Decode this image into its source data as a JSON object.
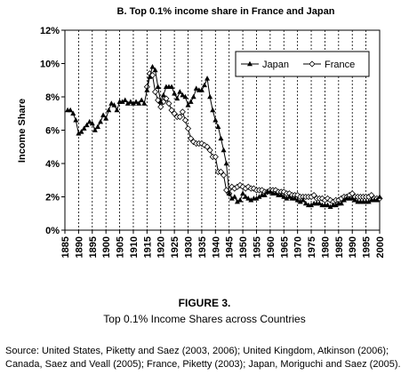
{
  "figure": {
    "label": "FIGURE 3.",
    "caption": "Top 0.1% Income Shares across Countries",
    "source": "Source: United States, Piketty and Saez (2003, 2006); United Kingdom, Atkinson (2006); Canada, Saez and Veall (2005); France, Piketty (2003); Japan, Moriguchi and Saez (2005)."
  },
  "chart_data": {
    "type": "line",
    "title": "B. Top 0.1% income share in France and Japan",
    "xlabel": "",
    "ylabel": "Income Share",
    "xlim": [
      1885,
      2000
    ],
    "ylim": [
      0,
      12
    ],
    "xticks": [
      "1885",
      "1890",
      "1895",
      "1900",
      "1905",
      "1910",
      "1915",
      "1920",
      "1925",
      "1930",
      "1935",
      "1940",
      "1945",
      "1950",
      "1955",
      "1960",
      "1965",
      "1970",
      "1975",
      "1980",
      "1985",
      "1990",
      "1995",
      "2000"
    ],
    "yticks": [
      "0%",
      "2%",
      "4%",
      "6%",
      "8%",
      "10%",
      "12%"
    ],
    "grid": "vertical dashed",
    "legend_position": "top-right",
    "series": [
      {
        "name": "Japan",
        "marker": "filled-triangle",
        "points": [
          [
            1886,
            7.2
          ],
          [
            1887,
            7.2
          ],
          [
            1888,
            7.0
          ],
          [
            1889,
            6.6
          ],
          [
            1890,
            5.8
          ],
          [
            1891,
            5.9
          ],
          [
            1892,
            6.1
          ],
          [
            1893,
            6.3
          ],
          [
            1894,
            6.5
          ],
          [
            1895,
            6.4
          ],
          [
            1896,
            6.0
          ],
          [
            1897,
            6.2
          ],
          [
            1898,
            6.5
          ],
          [
            1899,
            6.9
          ],
          [
            1900,
            6.7
          ],
          [
            1901,
            7.2
          ],
          [
            1902,
            7.6
          ],
          [
            1903,
            7.5
          ],
          [
            1904,
            7.2
          ],
          [
            1905,
            7.7
          ],
          [
            1906,
            7.7
          ],
          [
            1907,
            7.8
          ],
          [
            1908,
            7.6
          ],
          [
            1909,
            7.7
          ],
          [
            1910,
            7.6
          ],
          [
            1911,
            7.7
          ],
          [
            1912,
            7.6
          ],
          [
            1913,
            7.8
          ],
          [
            1914,
            7.6
          ],
          [
            1915,
            8.4
          ],
          [
            1916,
            9.2
          ],
          [
            1917,
            9.8
          ],
          [
            1918,
            9.6
          ],
          [
            1919,
            8.6
          ],
          [
            1920,
            7.7
          ],
          [
            1921,
            8.1
          ],
          [
            1922,
            8.6
          ],
          [
            1923,
            8.6
          ],
          [
            1924,
            8.6
          ],
          [
            1925,
            8.2
          ],
          [
            1926,
            7.9
          ],
          [
            1927,
            8.3
          ],
          [
            1928,
            8.1
          ],
          [
            1929,
            8.0
          ],
          [
            1930,
            7.5
          ],
          [
            1931,
            7.7
          ],
          [
            1932,
            8.0
          ],
          [
            1933,
            8.5
          ],
          [
            1934,
            8.4
          ],
          [
            1935,
            8.4
          ],
          [
            1936,
            8.7
          ],
          [
            1937,
            9.1
          ],
          [
            1938,
            8.0
          ],
          [
            1939,
            7.2
          ],
          [
            1940,
            6.6
          ],
          [
            1941,
            6.2
          ],
          [
            1942,
            5.5
          ],
          [
            1943,
            4.8
          ],
          [
            1944,
            4.0
          ],
          [
            1945,
            2.2
          ],
          [
            1946,
            1.9
          ],
          [
            1947,
            2.0
          ],
          [
            1948,
            1.7
          ],
          [
            1949,
            1.8
          ],
          [
            1950,
            2.2
          ],
          [
            1951,
            2.0
          ],
          [
            1952,
            1.9
          ],
          [
            1953,
            1.8
          ],
          [
            1954,
            1.9
          ],
          [
            1955,
            1.9
          ],
          [
            1956,
            2.0
          ],
          [
            1957,
            2.1
          ],
          [
            1958,
            2.1
          ],
          [
            1959,
            2.3
          ],
          [
            1960,
            2.3
          ],
          [
            1961,
            2.2
          ],
          [
            1962,
            2.2
          ],
          [
            1963,
            2.1
          ],
          [
            1964,
            2.1
          ],
          [
            1965,
            2.0
          ],
          [
            1966,
            1.9
          ],
          [
            1967,
            2.0
          ],
          [
            1968,
            1.9
          ],
          [
            1969,
            1.9
          ],
          [
            1970,
            1.8
          ],
          [
            1971,
            1.7
          ],
          [
            1972,
            1.8
          ],
          [
            1973,
            1.6
          ],
          [
            1974,
            1.5
          ],
          [
            1975,
            1.5
          ],
          [
            1976,
            1.6
          ],
          [
            1977,
            1.6
          ],
          [
            1978,
            1.6
          ],
          [
            1979,
            1.5
          ],
          [
            1980,
            1.5
          ],
          [
            1981,
            1.5
          ],
          [
            1982,
            1.4
          ],
          [
            1983,
            1.5
          ],
          [
            1984,
            1.5
          ],
          [
            1985,
            1.6
          ],
          [
            1986,
            1.6
          ],
          [
            1987,
            1.8
          ],
          [
            1988,
            1.9
          ],
          [
            1989,
            1.9
          ],
          [
            1990,
            1.9
          ],
          [
            1991,
            1.8
          ],
          [
            1992,
            1.7
          ],
          [
            1993,
            1.7
          ],
          [
            1994,
            1.7
          ],
          [
            1995,
            1.7
          ],
          [
            1996,
            1.7
          ],
          [
            1997,
            1.8
          ],
          [
            1998,
            1.8
          ],
          [
            1999,
            1.8
          ],
          [
            2000,
            2.0
          ]
        ]
      },
      {
        "name": "France",
        "marker": "open-diamond",
        "points": [
          [
            1915,
            8.6
          ],
          [
            1916,
            9.4
          ],
          [
            1917,
            9.3
          ],
          [
            1918,
            8.3
          ],
          [
            1919,
            7.8
          ],
          [
            1920,
            7.4
          ],
          [
            1921,
            7.7
          ],
          [
            1922,
            7.9
          ],
          [
            1923,
            7.6
          ],
          [
            1924,
            7.2
          ],
          [
            1925,
            7.0
          ],
          [
            1926,
            6.8
          ],
          [
            1927,
            6.8
          ],
          [
            1928,
            7.1
          ],
          [
            1929,
            6.6
          ],
          [
            1930,
            6.1
          ],
          [
            1931,
            5.5
          ],
          [
            1932,
            5.3
          ],
          [
            1933,
            5.2
          ],
          [
            1934,
            5.2
          ],
          [
            1935,
            5.2
          ],
          [
            1936,
            5.1
          ],
          [
            1937,
            5.0
          ],
          [
            1938,
            4.8
          ],
          [
            1939,
            4.4
          ],
          [
            1940,
            4.4
          ],
          [
            1941,
            3.5
          ],
          [
            1942,
            3.5
          ],
          [
            1943,
            3.3
          ],
          [
            1944,
            2.4
          ],
          [
            1945,
            2.2
          ],
          [
            1946,
            2.6
          ],
          [
            1947,
            2.5
          ],
          [
            1948,
            2.6
          ],
          [
            1949,
            2.7
          ],
          [
            1950,
            2.6
          ],
          [
            1951,
            2.5
          ],
          [
            1952,
            2.6
          ],
          [
            1953,
            2.5
          ],
          [
            1954,
            2.5
          ],
          [
            1955,
            2.4
          ],
          [
            1956,
            2.4
          ],
          [
            1957,
            2.4
          ],
          [
            1958,
            2.3
          ],
          [
            1959,
            2.3
          ],
          [
            1960,
            2.4
          ],
          [
            1961,
            2.4
          ],
          [
            1962,
            2.4
          ],
          [
            1963,
            2.3
          ],
          [
            1964,
            2.3
          ],
          [
            1965,
            2.3
          ],
          [
            1966,
            2.2
          ],
          [
            1967,
            2.2
          ],
          [
            1968,
            2.1
          ],
          [
            1969,
            2.1
          ],
          [
            1970,
            2.1
          ],
          [
            1971,
            2.0
          ],
          [
            1972,
            2.0
          ],
          [
            1973,
            2.0
          ],
          [
            1974,
            2.0
          ],
          [
            1975,
            2.0
          ],
          [
            1976,
            2.1
          ],
          [
            1977,
            1.9
          ],
          [
            1978,
            1.9
          ],
          [
            1979,
            1.9
          ],
          [
            1980,
            1.8
          ],
          [
            1981,
            1.9
          ],
          [
            1982,
            1.8
          ],
          [
            1983,
            1.7
          ],
          [
            1984,
            1.8
          ],
          [
            1985,
            1.8
          ],
          [
            1986,
            1.9
          ],
          [
            1987,
            2.0
          ],
          [
            1988,
            2.0
          ],
          [
            1989,
            2.1
          ],
          [
            1990,
            2.2
          ],
          [
            1991,
            2.0
          ],
          [
            1992,
            2.0
          ],
          [
            1993,
            2.0
          ],
          [
            1994,
            2.0
          ],
          [
            1995,
            2.0
          ],
          [
            1996,
            2.0
          ],
          [
            1997,
            2.1
          ],
          [
            1998,
            1.9
          ],
          [
            1999,
            1.9
          ],
          [
            2000,
            1.9
          ]
        ]
      }
    ]
  }
}
